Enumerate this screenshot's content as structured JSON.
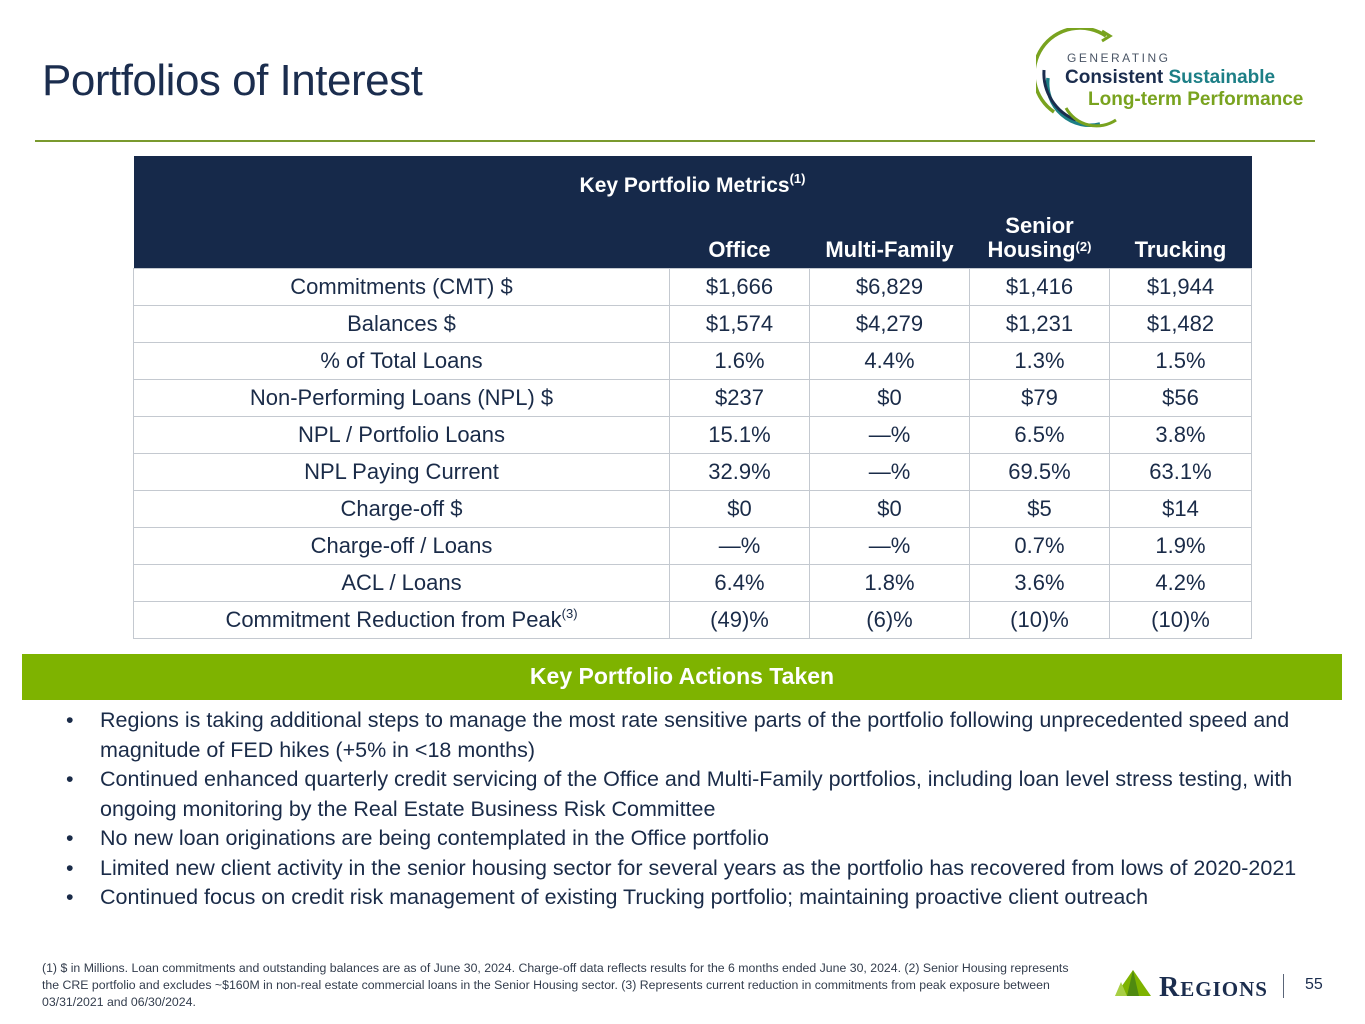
{
  "header": {
    "title": "Portfolios of Interest",
    "tagline": {
      "line1": "GENERATING",
      "line2_a": "Consistent",
      "line2_b": "Sustainable",
      "line3": "Long-term Performance"
    }
  },
  "table": {
    "title": "Key Portfolio Metrics",
    "title_note": "(1)",
    "columns": [
      "Office",
      "Multi-Family",
      "Senior",
      "Housing",
      "Trucking"
    ],
    "senior_note": "(2)",
    "rows": [
      {
        "label": "Commitments (CMT) $",
        "note": "",
        "values": [
          "$1,666",
          "$6,829",
          "$1,416",
          "$1,944"
        ]
      },
      {
        "label": "Balances $",
        "note": "",
        "values": [
          "$1,574",
          "$4,279",
          "$1,231",
          "$1,482"
        ]
      },
      {
        "label": "% of Total Loans",
        "note": "",
        "values": [
          "1.6%",
          "4.4%",
          "1.3%",
          "1.5%"
        ]
      },
      {
        "label": "Non-Performing Loans (NPL) $",
        "note": "",
        "values": [
          "$237",
          "$0",
          "$79",
          "$56"
        ]
      },
      {
        "label": "NPL / Portfolio Loans",
        "note": "",
        "values": [
          "15.1%",
          "—%",
          "6.5%",
          "3.8%"
        ]
      },
      {
        "label": "NPL Paying Current",
        "note": "",
        "values": [
          "32.9%",
          "—%",
          "69.5%",
          "63.1%"
        ]
      },
      {
        "label": "Charge-off $",
        "note": "",
        "values": [
          "$0",
          "$0",
          "$5",
          "$14"
        ]
      },
      {
        "label": "Charge-off / Loans",
        "note": "",
        "values": [
          "—%",
          "—%",
          "0.7%",
          "1.9%"
        ]
      },
      {
        "label": "ACL / Loans",
        "note": "",
        "values": [
          "6.4%",
          "1.8%",
          "3.6%",
          "4.2%"
        ]
      },
      {
        "label": "Commitment Reduction from Peak",
        "note": "(3)",
        "values": [
          "(49)%",
          "(6)%",
          "(10)%",
          "(10)%"
        ]
      }
    ]
  },
  "actions": {
    "title": "Key Portfolio Actions Taken",
    "bullet_glyph": "•",
    "items": [
      "Regions is taking additional steps to manage the most rate sensitive parts of the portfolio following unprecedented speed and magnitude of FED hikes (+5% in <18 months)",
      "Continued enhanced quarterly credit servicing of the Office and Multi-Family portfolios, including loan level stress testing, with ongoing monitoring by the Real Estate Business Risk Committee",
      "No new loan originations are being contemplated in the Office portfolio",
      "Limited new client activity in the senior housing sector for several years as the portfolio has recovered from lows of 2020-2021",
      "Continued focus on credit risk management of existing Trucking portfolio; maintaining proactive client outreach"
    ]
  },
  "footer": {
    "footnote": "(1) $ in Millions. Loan commitments and outstanding balances are as of June 30, 2024.  Charge-off data reflects results for the 6 months ended June 30, 2024.  (2) Senior Housing represents the CRE portfolio and excludes ~$160M in non-real estate commercial loans in the Senior Housing sector.  (3) Represents current reduction in commitments from peak exposure between 03/31/2021 and 06/30/2024.",
    "logo_text_a": "R",
    "logo_text_b": "EGIONS",
    "page_number": "55"
  },
  "colors": {
    "navy": "#16294a",
    "green": "#7eb300",
    "teal": "#1d7f86"
  },
  "icons": [
    "tagline-arc-icon",
    "regions-triangle-logo-icon"
  ]
}
